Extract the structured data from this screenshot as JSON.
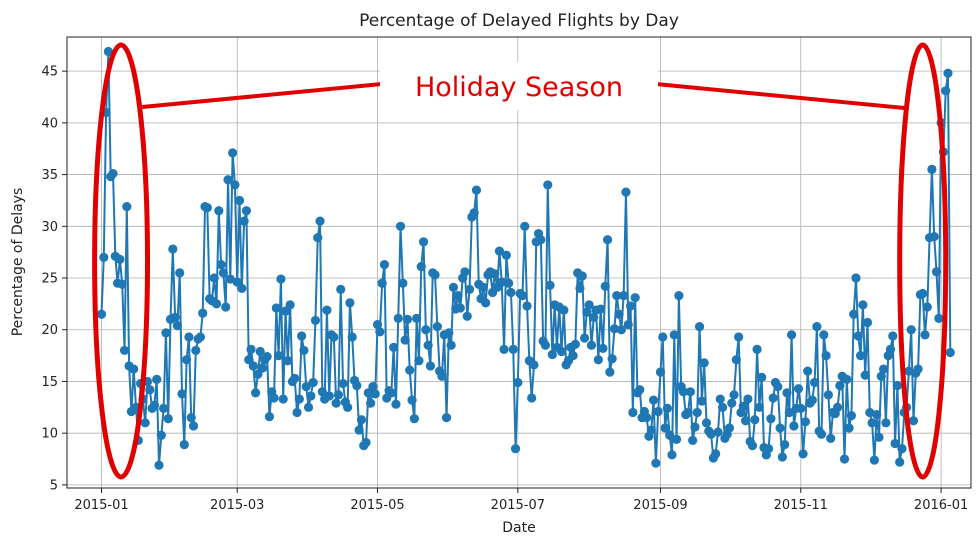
{
  "chart_data": {
    "type": "line",
    "title": "Percentage of Delayed Flights by Day",
    "xlabel": "Date",
    "ylabel": "Percentage of Delays",
    "x_range": [
      "2014-12-17",
      "2016-01-14"
    ],
    "ylim": [
      4.7,
      48.3
    ],
    "x_ticks": [
      "2015-01",
      "2015-03",
      "2015-05",
      "2015-07",
      "2015-09",
      "2015-11",
      "2016-01"
    ],
    "y_ticks": [
      5,
      10,
      15,
      20,
      25,
      30,
      35,
      40,
      45
    ],
    "grid": true,
    "line_color": "#1f77b4",
    "marker": "circle",
    "annotation": {
      "text": "Holiday Season",
      "color": "#e00000",
      "highlight_ranges": [
        [
          "2014-12-29",
          "2015-01-21"
        ],
        [
          "2015-12-14",
          "2016-01-03"
        ]
      ]
    },
    "series": [
      {
        "start_date": "2015-01-01",
        "values": [
          21.5,
          27.0,
          41.0,
          46.9,
          34.8,
          35.1,
          27.1,
          24.5,
          26.8,
          24.4,
          18.0,
          31.9,
          16.5,
          12.1,
          16.2,
          12.5,
          9.3,
          14.8,
          13.3,
          11.0,
          15.0,
          14.2,
          12.4,
          12.7,
          15.2,
          6.9,
          9.8,
          12.4,
          19.7,
          11.4,
          21.0,
          27.8,
          21.2,
          20.4,
          25.5,
          13.8,
          8.9,
          17.1,
          19.3,
          11.5,
          10.7,
          18.0,
          19.1,
          19.3,
          21.6,
          31.9,
          31.8,
          23.0,
          22.8,
          25.0,
          22.5,
          31.5,
          26.3,
          25.5,
          22.2,
          34.5,
          24.9,
          37.1,
          34.0,
          24.6,
          32.5,
          24.0,
          30.5,
          31.5,
          17.1,
          18.1,
          16.5,
          13.9,
          15.7,
          17.9,
          16.3,
          17.1,
          17.4,
          11.6,
          14.0,
          13.4,
          22.1,
          17.5,
          24.9,
          13.3,
          21.8,
          17.0,
          22.4,
          15.0,
          15.3,
          12.0,
          13.3,
          19.4,
          18.0,
          14.5,
          12.5,
          13.6,
          14.9,
          20.9,
          28.9,
          30.5,
          14.0,
          13.3,
          21.9,
          13.6,
          19.5,
          19.3,
          12.9,
          13.7,
          23.9,
          14.8,
          13.0,
          12.5,
          22.6,
          19.3,
          15.1,
          14.6,
          10.3,
          11.3,
          8.8,
          9.1,
          13.9,
          12.9,
          14.5,
          13.8,
          20.5,
          19.8,
          24.5,
          26.3,
          13.4,
          14.1,
          13.9,
          18.3,
          12.8,
          21.1,
          30.0,
          24.5,
          19.0,
          21.0,
          16.1,
          13.2,
          11.4,
          21.1,
          17.0,
          26.1,
          28.5,
          20.0,
          18.5,
          16.5,
          25.5,
          25.3,
          20.3,
          16.0,
          15.5,
          19.5,
          11.5,
          19.7,
          18.5,
          24.1,
          22.0,
          23.3,
          22.1,
          25.0,
          25.6,
          21.3,
          23.9,
          30.9,
          31.3,
          33.5,
          24.4,
          23.0,
          24.1,
          22.6,
          25.3,
          25.6,
          23.6,
          25.4,
          24.1,
          27.6,
          24.6,
          18.1,
          27.2,
          24.5,
          23.6,
          18.1,
          8.5,
          14.9,
          23.5,
          23.3,
          30.0,
          22.3,
          17.0,
          13.4,
          16.6,
          28.5,
          29.3,
          28.7,
          18.9,
          18.5,
          34.0,
          24.3,
          17.6,
          22.4,
          18.3,
          22.2,
          17.9,
          21.9,
          16.6,
          17.0,
          18.3,
          17.5,
          18.6,
          25.5,
          24.0,
          25.2,
          19.2,
          21.7,
          22.4,
          18.5,
          21.2,
          21.9,
          17.1,
          22.0,
          18.2,
          24.2,
          28.7,
          15.9,
          17.2,
          20.1,
          23.3,
          21.5,
          20.0,
          23.3,
          33.3,
          20.5,
          22.3,
          12.0,
          23.1,
          13.9,
          14.2,
          11.5,
          12.1,
          11.5,
          9.7,
          10.3,
          13.2,
          7.1,
          12.1,
          15.9,
          19.3,
          10.5,
          12.4,
          9.8,
          7.9,
          19.5,
          9.4,
          23.3,
          14.5,
          14.0,
          11.8,
          12.0,
          14.0,
          9.3,
          10.6,
          12.0,
          20.3,
          13.1,
          16.8,
          11.0,
          10.2,
          9.9,
          7.6,
          8.0,
          10.1,
          13.3,
          12.5,
          9.5,
          9.9,
          10.5,
          12.9,
          13.7,
          17.1,
          19.3,
          12.0,
          12.6,
          11.2,
          13.3,
          9.2,
          8.8,
          11.3,
          18.1,
          12.5,
          15.4,
          8.6,
          7.9,
          8.5,
          11.4,
          13.4,
          14.9,
          14.5,
          10.5,
          7.7,
          8.9,
          13.9,
          12.0,
          19.5,
          10.7,
          12.4,
          14.3,
          12.4,
          8.0,
          11.1,
          16.0,
          12.9,
          13.2,
          14.9,
          20.3,
          10.2,
          9.9,
          19.5,
          17.5,
          13.7,
          9.5,
          12.0,
          11.9,
          12.5,
          14.6,
          15.5,
          7.5,
          15.2,
          10.5,
          11.7,
          21.5,
          25.0,
          19.4,
          17.5,
          22.4,
          15.6,
          20.7,
          12.0,
          11.0,
          7.4,
          11.8,
          9.6,
          15.5,
          16.2,
          11.0,
          17.5,
          18.1,
          19.4,
          9.0,
          14.6,
          7.2,
          8.5,
          12.0,
          12.5,
          16.0,
          20.0,
          11.2,
          15.8,
          16.2,
          23.4,
          23.5,
          19.5,
          22.2,
          28.9,
          35.5,
          29.0,
          25.6,
          21.1,
          40.0,
          37.2,
          43.1,
          44.8,
          17.8
        ]
      }
    ]
  }
}
